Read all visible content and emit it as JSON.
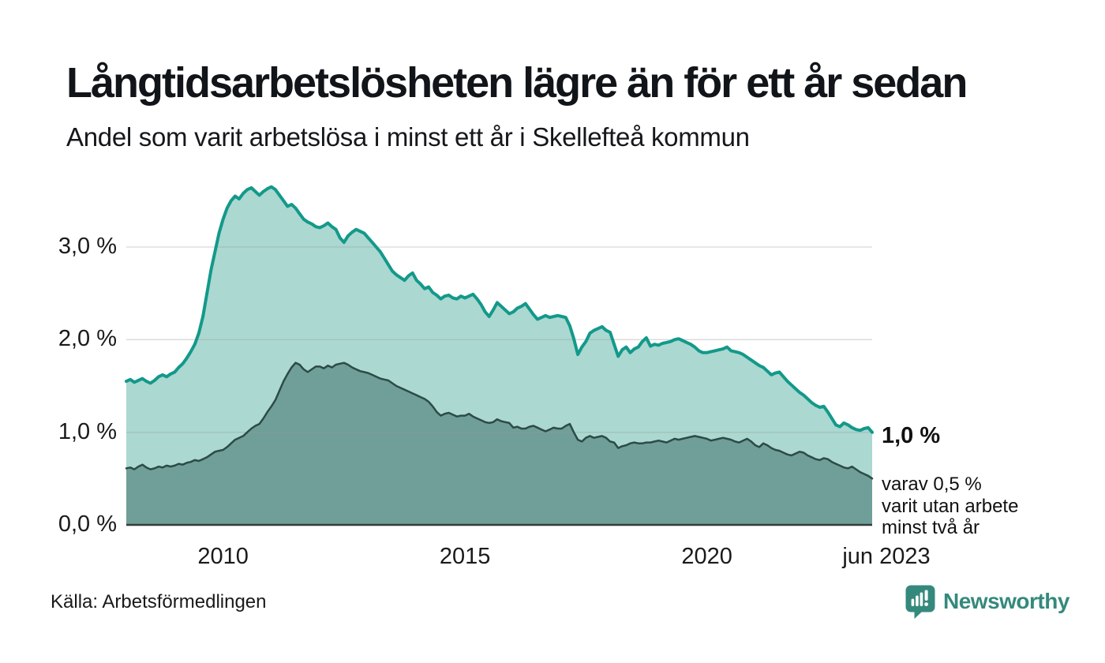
{
  "chart_data": {
    "type": "area",
    "title": "Långtidsarbetslösheten lägre än för ett år sedan",
    "subtitle": "Andel som varit arbetslösa i minst ett år i Skellefteå kommun",
    "x": {
      "start": "jan 2008",
      "end": "jun 2023",
      "frequency": "monthly"
    },
    "ylim": [
      0,
      3.8
    ],
    "grid": "horizontal",
    "yticks": [
      {
        "value": 0,
        "label": "0,0 %"
      },
      {
        "value": 1,
        "label": "1,0 %"
      },
      {
        "value": 2,
        "label": "2,0 %"
      },
      {
        "value": 3,
        "label": "3,0 %"
      }
    ],
    "xticks": [
      {
        "month_index": 24,
        "label": "2010"
      },
      {
        "month_index": 84,
        "label": "2015"
      },
      {
        "month_index": 144,
        "label": "2020"
      },
      {
        "month_index": 185,
        "label": "jun 2023"
      }
    ],
    "series": [
      {
        "name": "Arbetslösa minst ett år",
        "color": "#13998a",
        "fill": "#abd8d1",
        "values": [
          1.55,
          1.57,
          1.54,
          1.56,
          1.58,
          1.55,
          1.53,
          1.56,
          1.6,
          1.62,
          1.6,
          1.63,
          1.65,
          1.7,
          1.74,
          1.8,
          1.87,
          1.95,
          2.07,
          2.25,
          2.5,
          2.75,
          2.95,
          3.15,
          3.3,
          3.42,
          3.5,
          3.55,
          3.52,
          3.58,
          3.62,
          3.64,
          3.6,
          3.56,
          3.6,
          3.63,
          3.65,
          3.62,
          3.56,
          3.5,
          3.44,
          3.46,
          3.42,
          3.36,
          3.3,
          3.27,
          3.25,
          3.22,
          3.21,
          3.23,
          3.26,
          3.22,
          3.19,
          3.1,
          3.05,
          3.12,
          3.16,
          3.19,
          3.17,
          3.15,
          3.1,
          3.05,
          3.0,
          2.95,
          2.88,
          2.81,
          2.74,
          2.7,
          2.67,
          2.64,
          2.69,
          2.72,
          2.64,
          2.6,
          2.55,
          2.57,
          2.51,
          2.48,
          2.44,
          2.47,
          2.48,
          2.45,
          2.44,
          2.47,
          2.45,
          2.47,
          2.49,
          2.44,
          2.38,
          2.3,
          2.25,
          2.32,
          2.4,
          2.36,
          2.32,
          2.28,
          2.3,
          2.34,
          2.36,
          2.39,
          2.33,
          2.27,
          2.22,
          2.24,
          2.26,
          2.24,
          2.25,
          2.26,
          2.25,
          2.24,
          2.15,
          2.01,
          1.84,
          1.92,
          1.98,
          2.07,
          2.1,
          2.12,
          2.14,
          2.1,
          2.08,
          1.95,
          1.82,
          1.89,
          1.92,
          1.86,
          1.9,
          1.92,
          1.98,
          2.02,
          1.93,
          1.95,
          1.94,
          1.96,
          1.97,
          1.98,
          2.0,
          2.01,
          1.99,
          1.97,
          1.95,
          1.92,
          1.88,
          1.86,
          1.86,
          1.87,
          1.88,
          1.89,
          1.9,
          1.92,
          1.88,
          1.87,
          1.86,
          1.84,
          1.81,
          1.78,
          1.75,
          1.72,
          1.7,
          1.66,
          1.62,
          1.64,
          1.65,
          1.6,
          1.55,
          1.51,
          1.47,
          1.43,
          1.4,
          1.36,
          1.32,
          1.29,
          1.27,
          1.28,
          1.22,
          1.15,
          1.08,
          1.06,
          1.1,
          1.08,
          1.05,
          1.03,
          1.02,
          1.04,
          1.05,
          1.0
        ]
      },
      {
        "name": "varav arbetslösa minst två år",
        "color": "#2d4b46",
        "fill": "#6f9f98",
        "values": [
          0.61,
          0.62,
          0.6,
          0.63,
          0.65,
          0.62,
          0.6,
          0.61,
          0.63,
          0.62,
          0.64,
          0.63,
          0.64,
          0.66,
          0.65,
          0.67,
          0.68,
          0.7,
          0.69,
          0.71,
          0.73,
          0.76,
          0.79,
          0.8,
          0.81,
          0.84,
          0.88,
          0.92,
          0.94,
          0.96,
          1.0,
          1.04,
          1.07,
          1.09,
          1.15,
          1.22,
          1.28,
          1.35,
          1.45,
          1.55,
          1.63,
          1.7,
          1.75,
          1.73,
          1.68,
          1.65,
          1.68,
          1.71,
          1.71,
          1.69,
          1.72,
          1.7,
          1.73,
          1.74,
          1.75,
          1.73,
          1.7,
          1.68,
          1.66,
          1.65,
          1.64,
          1.62,
          1.6,
          1.58,
          1.57,
          1.56,
          1.53,
          1.5,
          1.48,
          1.46,
          1.44,
          1.42,
          1.4,
          1.38,
          1.36,
          1.33,
          1.28,
          1.22,
          1.18,
          1.2,
          1.21,
          1.19,
          1.17,
          1.18,
          1.18,
          1.2,
          1.17,
          1.15,
          1.13,
          1.11,
          1.1,
          1.11,
          1.14,
          1.12,
          1.11,
          1.1,
          1.05,
          1.06,
          1.04,
          1.04,
          1.06,
          1.07,
          1.05,
          1.03,
          1.01,
          1.03,
          1.05,
          1.04,
          1.04,
          1.07,
          1.09,
          1.0,
          0.92,
          0.9,
          0.94,
          0.96,
          0.94,
          0.95,
          0.96,
          0.94,
          0.9,
          0.89,
          0.83,
          0.85,
          0.86,
          0.88,
          0.89,
          0.88,
          0.88,
          0.89,
          0.89,
          0.9,
          0.91,
          0.9,
          0.89,
          0.91,
          0.93,
          0.92,
          0.93,
          0.94,
          0.95,
          0.96,
          0.95,
          0.94,
          0.93,
          0.91,
          0.92,
          0.93,
          0.94,
          0.93,
          0.92,
          0.9,
          0.89,
          0.91,
          0.93,
          0.9,
          0.86,
          0.84,
          0.88,
          0.86,
          0.83,
          0.81,
          0.8,
          0.78,
          0.76,
          0.75,
          0.77,
          0.79,
          0.78,
          0.75,
          0.73,
          0.71,
          0.7,
          0.72,
          0.71,
          0.68,
          0.66,
          0.64,
          0.62,
          0.61,
          0.63,
          0.6,
          0.57,
          0.55,
          0.53,
          0.5
        ]
      }
    ],
    "end_labels": {
      "total": "1,0 %",
      "sub_lines": [
        "varav 0,5 %",
        "varit utan arbete",
        "minst två år"
      ]
    },
    "source": "Källa: Arbetsförmedlingen"
  },
  "footer": {
    "brand_name": "Newsworthy"
  },
  "colors": {
    "grid": "#9a9a9a",
    "axis": "#333b39",
    "brand_teal": "#35897c",
    "text": "#111418"
  }
}
